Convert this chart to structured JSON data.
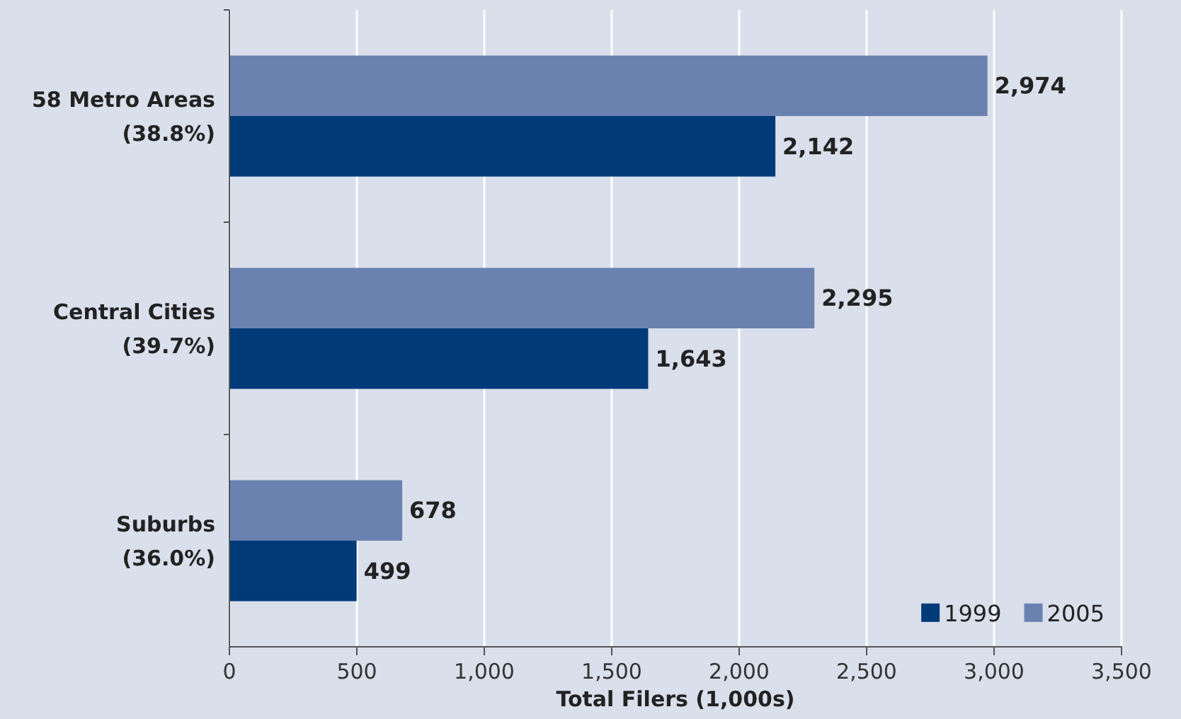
{
  "chart_data": {
    "type": "bar",
    "orientation": "horizontal",
    "xlabel": "Total Filers (1,000s)",
    "categories": [
      "58 Metro Areas\n(38.8%)",
      "Central Cities\n(39.7%)",
      "Suburbs\n(36.0%)"
    ],
    "series": [
      {
        "name": "1999",
        "color": "#003a78",
        "values": [
          2142,
          1643,
          499
        ],
        "value_labels": [
          "2,142",
          "1,643",
          "499"
        ]
      },
      {
        "name": "2005",
        "color": "#6b82b0",
        "values": [
          2974,
          2295,
          678
        ],
        "value_labels": [
          "2,974",
          "2,295",
          "678"
        ]
      }
    ],
    "xlim": [
      0,
      3500
    ],
    "xticks": [
      0,
      500,
      {
        "value": 1000,
        "label": "1,000"
      },
      {
        "value": 1500,
        "label": "1,500"
      },
      {
        "value": 2000,
        "label": "2,000"
      },
      {
        "value": 2500,
        "label": "2,500"
      },
      {
        "value": 3000,
        "label": "3,000"
      },
      {
        "value": 3500,
        "label": "3,500"
      }
    ],
    "grid": "x",
    "legend": "bottom right"
  }
}
